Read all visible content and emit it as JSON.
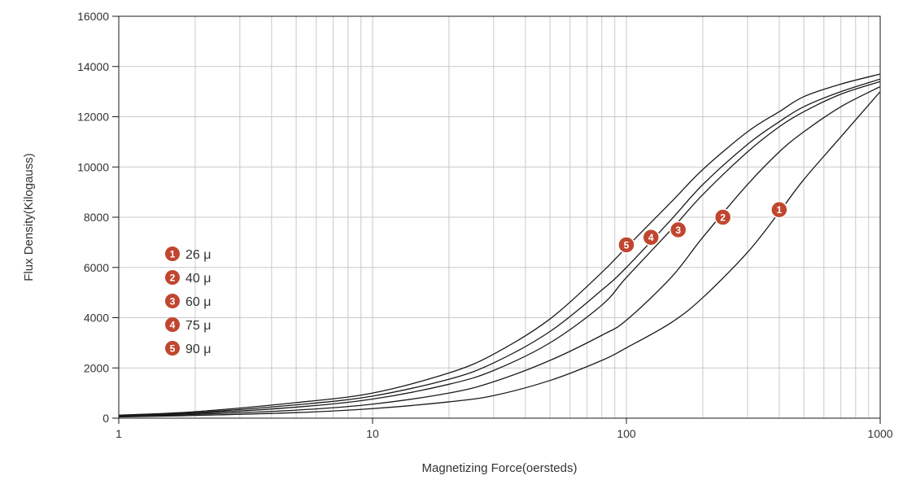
{
  "chart_data": {
    "type": "line",
    "xlabel": "Magnetizing Force(oersteds)",
    "ylabel": "Flux Density(Kilogauss)",
    "xscale": "log",
    "xlim": [
      1,
      1000
    ],
    "ylim": [
      0,
      16000
    ],
    "x_ticks": [
      1,
      10,
      100,
      1000
    ],
    "x_tick_labels": [
      "1",
      "10",
      "100",
      "1000"
    ],
    "y_ticks": [
      0,
      2000,
      4000,
      6000,
      8000,
      10000,
      12000,
      14000,
      16000
    ],
    "y_tick_labels": [
      "0",
      "2000",
      "4000",
      "6000",
      "8000",
      "10000",
      "12000",
      "14000",
      "16000"
    ],
    "grid": true,
    "legend_position": "left",
    "marker_color": "#C1462F",
    "line_color": "#1a1a1a",
    "series": [
      {
        "id": "1",
        "name": "26 μ",
        "x": [
          1,
          2,
          5,
          10,
          20,
          30,
          50,
          80,
          100,
          150,
          200,
          300,
          400,
          500,
          700,
          1000
        ],
        "y": [
          50,
          110,
          220,
          380,
          650,
          900,
          1500,
          2300,
          2800,
          3800,
          4800,
          6600,
          8200,
          9500,
          11200,
          13000
        ],
        "label_x": 400,
        "label_y": 8300
      },
      {
        "id": "2",
        "name": "40 μ",
        "x": [
          1,
          2,
          5,
          10,
          20,
          30,
          50,
          80,
          100,
          150,
          200,
          300,
          400,
          500,
          700,
          1000
        ],
        "y": [
          70,
          150,
          320,
          560,
          1000,
          1450,
          2300,
          3300,
          3900,
          5600,
          7200,
          9300,
          10600,
          11400,
          12400,
          13200
        ],
        "label_x": 240,
        "label_y": 8000
      },
      {
        "id": "3",
        "name": "60 μ",
        "x": [
          1,
          2,
          5,
          10,
          20,
          30,
          50,
          80,
          100,
          150,
          200,
          300,
          400,
          500,
          700,
          1000
        ],
        "y": [
          90,
          190,
          440,
          760,
          1350,
          1900,
          3000,
          4500,
          5600,
          7500,
          8900,
          10600,
          11600,
          12200,
          12900,
          13400
        ],
        "label_x": 160,
        "label_y": 7500
      },
      {
        "id": "4",
        "name": "75 μ",
        "x": [
          1,
          2,
          5,
          10,
          20,
          30,
          50,
          80,
          100,
          150,
          200,
          300,
          400,
          500,
          700,
          1000
        ],
        "y": [
          100,
          220,
          530,
          880,
          1550,
          2200,
          3450,
          5100,
          6000,
          7900,
          9300,
          10900,
          11800,
          12400,
          13000,
          13500
        ],
        "label_x": 125,
        "label_y": 7200
      },
      {
        "id": "5",
        "name": "90 μ",
        "x": [
          1,
          2,
          5,
          10,
          20,
          30,
          50,
          80,
          100,
          150,
          200,
          300,
          400,
          500,
          700,
          1000
        ],
        "y": [
          120,
          260,
          620,
          1000,
          1800,
          2550,
          3950,
          5800,
          6800,
          8600,
          9900,
          11400,
          12200,
          12800,
          13300,
          13700
        ],
        "label_x": 100,
        "label_y": 6900
      }
    ]
  }
}
